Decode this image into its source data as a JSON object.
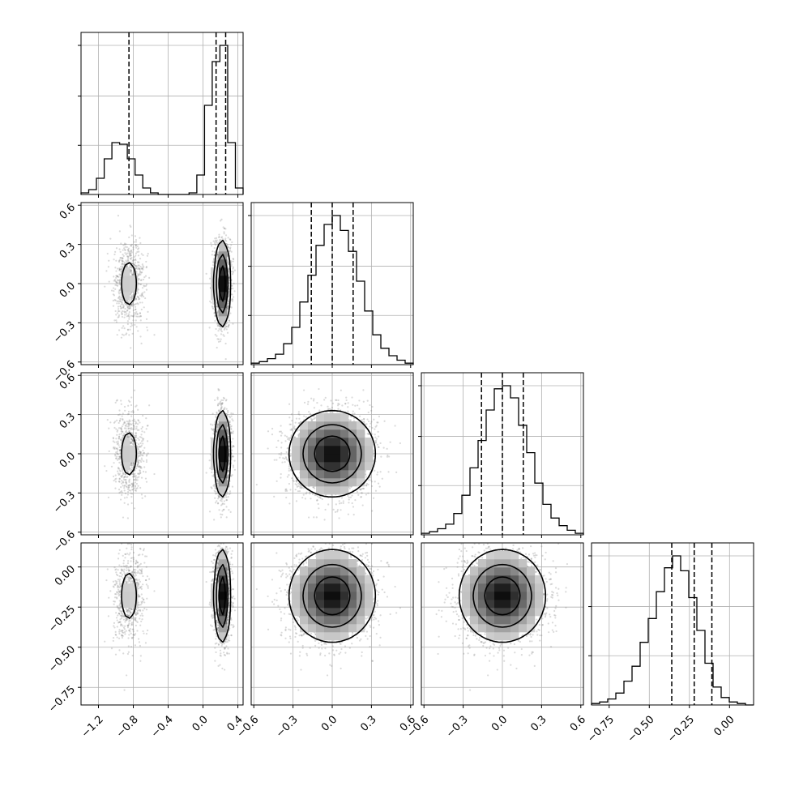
{
  "chart_data": {
    "type": "corner",
    "n_params": 4,
    "grid": true,
    "ranges": [
      [
        -1.4,
        0.46
      ],
      [
        -0.62,
        0.62
      ],
      [
        -0.62,
        0.62
      ],
      [
        -0.86,
        0.15
      ]
    ],
    "ticks": [
      [
        -1.2,
        -0.8,
        -0.4,
        0.0,
        0.4
      ],
      [
        -0.6,
        -0.3,
        0.0,
        0.3,
        0.6
      ],
      [
        -0.6,
        -0.3,
        0.0,
        0.3,
        0.6
      ],
      [
        -0.75,
        -0.5,
        -0.25,
        0.0
      ]
    ],
    "tick_labels": [
      [
        "−1.2",
        "−0.8",
        "−0.4",
        "0.0",
        "0.4"
      ],
      [
        "−0.6",
        "−0.3",
        "0.0",
        "0.3",
        "0.6"
      ],
      [
        "−0.6",
        "−0.3",
        "0.0",
        "0.3",
        "0.6"
      ],
      [
        "−0.75",
        "−0.50",
        "−0.25",
        "0.00"
      ]
    ],
    "quantiles": [
      [
        -0.85,
        0.15,
        0.26
      ],
      [
        -0.16,
        0.0,
        0.16
      ],
      [
        -0.16,
        0.0,
        0.16
      ],
      [
        -0.36,
        -0.22,
        -0.11
      ]
    ],
    "histograms": [
      [
        0.01,
        0.03,
        0.1,
        0.22,
        0.32,
        0.31,
        0.22,
        0.12,
        0.04,
        0.01,
        0.0,
        0.0,
        0.0,
        0.0,
        0.01,
        0.12,
        0.55,
        0.82,
        0.92,
        0.32,
        0.04
      ],
      [
        0.01,
        0.02,
        0.04,
        0.07,
        0.14,
        0.25,
        0.42,
        0.6,
        0.8,
        0.94,
        1.0,
        0.9,
        0.76,
        0.56,
        0.36,
        0.2,
        0.11,
        0.06,
        0.03,
        0.01
      ],
      [
        0.01,
        0.02,
        0.04,
        0.07,
        0.14,
        0.26,
        0.44,
        0.62,
        0.82,
        0.96,
        0.98,
        0.9,
        0.72,
        0.54,
        0.34,
        0.2,
        0.11,
        0.06,
        0.03,
        0.01
      ],
      [
        0.01,
        0.02,
        0.04,
        0.08,
        0.16,
        0.26,
        0.42,
        0.58,
        0.76,
        0.92,
        1.0,
        0.9,
        0.72,
        0.5,
        0.28,
        0.12,
        0.05,
        0.02,
        0.01,
        0.0
      ]
    ],
    "modes": [
      {
        "weight": 0.27,
        "mean": [
          -0.85,
          0.0,
          0.0,
          -0.18
        ],
        "sd": [
          0.085,
          0.16,
          0.16,
          0.14
        ]
      },
      {
        "weight": 0.73,
        "mean": [
          0.22,
          0.0,
          0.0,
          -0.18
        ],
        "sd": [
          0.045,
          0.16,
          0.16,
          0.14
        ]
      }
    ]
  }
}
